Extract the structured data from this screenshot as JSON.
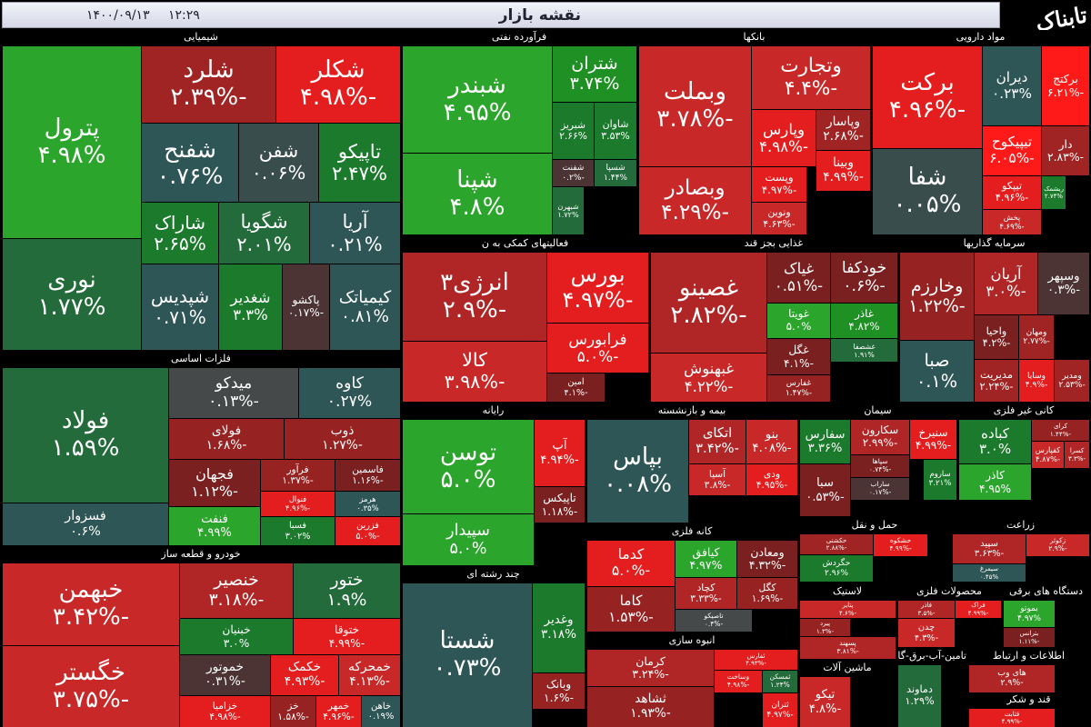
{
  "header": {
    "title": "نقشه بازار",
    "time": "۱۲:۲۹",
    "date": "۱۴۰۰/۰۹/۱۳",
    "logo": "تابناک"
  },
  "sectors": [
    {
      "title": "شیمیایی",
      "tiles": [
        {
          "name": "پترول",
          "change": "۴.۹۸%",
          "color": "#2ca52c"
        },
        {
          "name": "نوری",
          "change": "۱.۷۷%",
          "color": "#236b3a"
        },
        {
          "name": "شلرد",
          "change": "-۲.۳۹%",
          "color": "#a02424"
        },
        {
          "name": "شکلر",
          "change": "-۴.۹۸%",
          "color": "#e41e1e"
        },
        {
          "name": "شفنح",
          "change": "۰.۷۶%",
          "color": "#2f5656"
        },
        {
          "name": "شفن",
          "change": "۰.۰۶%",
          "color": "#3a4d4d"
        },
        {
          "name": "تاپیکو",
          "change": "۲.۴۷%",
          "color": "#1c7a2c"
        },
        {
          "name": "شاراک",
          "change": "۲.۶۵%",
          "color": "#1c7a2c"
        },
        {
          "name": "شگویا",
          "change": "۲.۰۱%",
          "color": "#236b3a"
        },
        {
          "name": "آریا",
          "change": "۰.۲۱%",
          "color": "#2f5656"
        },
        {
          "name": "شپدیس",
          "change": "۰.۷۱%",
          "color": "#2f5656"
        },
        {
          "name": "شغدیر",
          "change": "۳.۳%",
          "color": "#1c7a2c"
        },
        {
          "name": "پاکشو",
          "change": "-۰.۱۷%",
          "color": "#4c3434"
        },
        {
          "name": "کیمیاتک",
          "change": "۰.۸۱%",
          "color": "#2f5656"
        }
      ]
    },
    {
      "title": "فلزات اساسی",
      "tiles": [
        {
          "name": "فولاد",
          "change": "۱.۵۹%",
          "color": "#236b3a"
        },
        {
          "name": "فسزوار",
          "change": "۰.۶%",
          "color": "#2f5656"
        },
        {
          "name": "میدکو",
          "change": "-۰.۱۳%",
          "color": "#45494a"
        },
        {
          "name": "کاوه",
          "change": "۰.۲۷%",
          "color": "#2f5656"
        },
        {
          "name": "فولای",
          "change": "-۱.۶۸%",
          "color": "#962222"
        },
        {
          "name": "ذوب",
          "change": "-۱.۲۷%",
          "color": "#962222"
        },
        {
          "name": "فجهان",
          "change": "-۱.۱۲%",
          "color": "#7a2020"
        },
        {
          "name": "فرآور",
          "change": "-۱.۳۷%",
          "color": "#962222"
        },
        {
          "name": "فاسمین",
          "change": "-۱.۱۶%",
          "color": "#7a2020"
        },
        {
          "name": "فنوال",
          "change": "-۴.۹۶%",
          "color": "#e41e1e"
        },
        {
          "name": "هرمز",
          "change": "۰.۳۵%",
          "color": "#2f5656"
        },
        {
          "name": "فنفت",
          "change": "۴.۹۹%",
          "color": "#2ca52c"
        },
        {
          "name": "فسبا",
          "change": "۳.۰۲%",
          "color": "#1c7a2c"
        },
        {
          "name": "فزرین",
          "change": "-۵.۰%",
          "color": "#e41e1e"
        }
      ]
    },
    {
      "title": "خودرو و قطعه ساز",
      "tiles": [
        {
          "name": "خبهمن",
          "change": "-۳.۴۲%",
          "color": "#c92828"
        },
        {
          "name": "خگستر",
          "change": "-۳.۷۵%",
          "color": "#c92828"
        },
        {
          "name": "خنصیر",
          "change": "-۳.۱۸%",
          "color": "#b02626"
        },
        {
          "name": "ختور",
          "change": "۱.۹%",
          "color": "#236b3a"
        },
        {
          "name": "خبنیان",
          "change": "۳.۰%",
          "color": "#1c7a2c"
        },
        {
          "name": "ختوقا",
          "change": "-۴.۹۹%",
          "color": "#e41e1e"
        },
        {
          "name": "خموتور",
          "change": "-۰.۳۱%",
          "color": "#4c3434"
        },
        {
          "name": "خکمک",
          "change": "-۴.۹۳%",
          "color": "#e41e1e"
        },
        {
          "name": "خمحرکه",
          "change": "-۴.۱۳%",
          "color": "#c92828"
        },
        {
          "name": "خزامیا",
          "change": "-۴.۹۸%",
          "color": "#e41e1e"
        },
        {
          "name": "خز",
          "change": "-۱.۵۸%",
          "color": "#962222"
        },
        {
          "name": "خمهر",
          "change": "-۴.۹۶%",
          "color": "#e41e1e"
        },
        {
          "name": "خاهن",
          "change": "۰.۱۹%",
          "color": "#2f5656"
        }
      ]
    },
    {
      "title": "فرآورده نفتی",
      "tiles": [
        {
          "name": "شبندر",
          "change": "۴.۹۵%",
          "color": "#2ca52c"
        },
        {
          "name": "شپنا",
          "change": "۴.۸%",
          "color": "#2ca52c"
        },
        {
          "name": "شتران",
          "change": "۳.۷۴%",
          "color": "#1f9024"
        },
        {
          "name": "شبریز",
          "change": "۲.۶۶%",
          "color": "#1c7a2c"
        },
        {
          "name": "شاوان",
          "change": "۳.۵۳%",
          "color": "#1c7a2c"
        },
        {
          "name": "شفنت",
          "change": "-۰.۲%",
          "color": "#4c3434"
        },
        {
          "name": "شسپا",
          "change": "۱.۴۴%",
          "color": "#236b3a"
        },
        {
          "name": "شبهرن",
          "change": "۱.۷۲%",
          "color": "#236b3a"
        }
      ]
    },
    {
      "title": "بانکها",
      "tiles": [
        {
          "name": "وبملت",
          "change": "-۳.۷۸%",
          "color": "#c92828"
        },
        {
          "name": "وبصادر",
          "change": "-۴.۲۹%",
          "color": "#c92828"
        },
        {
          "name": "وتجارت",
          "change": "-۴.۴%",
          "color": "#c92828"
        },
        {
          "name": "وپارس",
          "change": "-۴.۹۸%",
          "color": "#e41e1e"
        },
        {
          "name": "وپاسار",
          "change": "-۲.۶۸%",
          "color": "#a02424"
        },
        {
          "name": "وبینا",
          "change": "-۴.۹۹%",
          "color": "#e41e1e"
        },
        {
          "name": "وپست",
          "change": "-۴.۹۷%",
          "color": "#e41e1e"
        },
        {
          "name": "ونوین",
          "change": "-۴.۶۳%",
          "color": "#c92828"
        }
      ]
    },
    {
      "title": "مواد دارویی",
      "tiles": [
        {
          "name": "برکت",
          "change": "-۴.۹۶%",
          "color": "#e41e1e"
        },
        {
          "name": "شفا",
          "change": "۰.۰۵%",
          "color": "#3a4d4d"
        },
        {
          "name": "دیران",
          "change": "۰.۲۳%",
          "color": "#2f5656"
        },
        {
          "name": "برکتج",
          "change": "-۶.۲۱%",
          "color": "#ff1a1a"
        },
        {
          "name": "تیپیکوح",
          "change": "-۶.۰۵%",
          "color": "#ff1a1a"
        },
        {
          "name": "دار",
          "change": "-۲.۸۳%",
          "color": "#a02424"
        },
        {
          "name": "تیپکو",
          "change": "-۴.۹۶%",
          "color": "#e41e1e"
        },
        {
          "name": "پخش",
          "change": "-۴.۶۹%",
          "color": "#c92828"
        },
        {
          "name": "ریشمک",
          "change": "۲.۷۴%",
          "color": "#1c7a2c"
        }
      ]
    },
    {
      "title": "فعالیتهای کمکی به ن",
      "tiles": [
        {
          "name": "انرژی۳",
          "change": "-۲.۹%",
          "color": "#b02626"
        },
        {
          "name": "کالا",
          "change": "-۳.۹۸%",
          "color": "#c92828"
        },
        {
          "name": "بورس",
          "change": "-۴.۹۷%",
          "color": "#e41e1e"
        },
        {
          "name": "فرابورس",
          "change": "-۵.۰%",
          "color": "#e41e1e"
        },
        {
          "name": "امین",
          "change": "-۴.۱%",
          "color": "#7a2020"
        }
      ]
    },
    {
      "title": "غذایی بجز قند",
      "tiles": [
        {
          "name": "غصینو",
          "change": "-۲.۸۲%",
          "color": "#b02626"
        },
        {
          "name": "غبهنوش",
          "change": "-۴.۲۲%",
          "color": "#c92828"
        },
        {
          "name": "غیاک",
          "change": "-۰.۵۱%",
          "color": "#7a2020"
        },
        {
          "name": "خودکفا",
          "change": "-۰.۶%",
          "color": "#7a2020"
        },
        {
          "name": "غویتا",
          "change": "۵.۰%",
          "color": "#2ca52c"
        },
        {
          "name": "غاذر",
          "change": "۴.۸۲%",
          "color": "#1f9024"
        },
        {
          "name": "غگل",
          "change": "-۴.۱%",
          "color": "#7a2020"
        },
        {
          "name": "غشصفا",
          "change": "۱.۹۱%",
          "color": "#236b3a"
        },
        {
          "name": "غفارس",
          "change": "-۱.۴۷%",
          "color": "#962222"
        }
      ]
    },
    {
      "title": "سرمایه گذاریها",
      "tiles": [
        {
          "name": "وخارزم",
          "change": "-۱.۲۲%",
          "color": "#962222"
        },
        {
          "name": "صبا",
          "change": "۰.۱%",
          "color": "#2f5656"
        },
        {
          "name": "آریان",
          "change": "-۳.۰%",
          "color": "#b02626"
        },
        {
          "name": "وسپهر",
          "change": "-۰.۳%",
          "color": "#4c3434"
        },
        {
          "name": "واحیا",
          "change": "-۴.۲%",
          "color": "#7a2020"
        },
        {
          "name": "ومهان",
          "change": "-۲.۷۷%",
          "color": "#a02424"
        },
        {
          "name": "مدیریت",
          "change": "-۲.۲۴%",
          "color": "#a02424"
        },
        {
          "name": "وسایا",
          "change": "-۴.۹%",
          "color": "#e41e1e"
        },
        {
          "name": "ومدیر",
          "change": "-۲.۵۳%",
          "color": "#a02424"
        }
      ]
    },
    {
      "title": "رایانه",
      "tiles": [
        {
          "name": "توسن",
          "change": "۵.۰%",
          "color": "#2ca52c"
        },
        {
          "name": "سپیدار",
          "change": "۵.۰%",
          "color": "#2ca52c"
        },
        {
          "name": "آپ",
          "change": "-۴.۹۴%",
          "color": "#e41e1e"
        },
        {
          "name": "تاپیکس",
          "change": "-۱.۱۸%",
          "color": "#7a2020"
        }
      ]
    },
    {
      "title": "بیمه و بازنشسته",
      "tiles": [
        {
          "name": "بپاس",
          "change": "۰.۰۸%",
          "color": "#2f5656"
        },
        {
          "name": "اتکای",
          "change": "-۳.۴۲%",
          "color": "#b02626"
        },
        {
          "name": "بنو",
          "change": "-۴.۰۸%",
          "color": "#c92828"
        },
        {
          "name": "آسیا",
          "change": "-۳.۸%",
          "color": "#c92828"
        },
        {
          "name": "ودی",
          "change": "-۴.۹۵%",
          "color": "#e41e1e"
        }
      ]
    },
    {
      "title": "کانه فلزی",
      "tiles": [
        {
          "name": "کدما",
          "change": "-۵.۰%",
          "color": "#e41e1e"
        },
        {
          "name": "کاما",
          "change": "-۱.۵۳%",
          "color": "#962222"
        },
        {
          "name": "کیافق",
          "change": "۴.۹۷%",
          "color": "#2ca52c"
        },
        {
          "name": "ومعادن",
          "change": "-۴.۳۲%",
          "color": "#7a2020"
        },
        {
          "name": "کچاد",
          "change": "-۳.۳۳%",
          "color": "#b02626"
        },
        {
          "name": "کگل",
          "change": "-۱.۶۹%",
          "color": "#962222"
        },
        {
          "name": "تاصیکو",
          "change": "-۰.۴%",
          "color": "#45494a"
        }
      ]
    },
    {
      "title": "چند رشته ای",
      "tiles": [
        {
          "name": "شستا",
          "change": "۰.۷۳%",
          "color": "#2f5656"
        },
        {
          "name": "وغدیر",
          "change": "۳.۱۸%",
          "color": "#1c7a2c"
        },
        {
          "name": "وبانک",
          "change": "-۱.۶%",
          "color": "#962222"
        }
      ]
    },
    {
      "title": "انبوه سازی",
      "tiles": [
        {
          "name": "کرمان",
          "change": "-۳.۲۴%",
          "color": "#b02626"
        },
        {
          "name": "ثشاهد",
          "change": "-۱.۹۳%",
          "color": "#962222"
        },
        {
          "name": "ثفارس",
          "change": "-۴.۹۳%",
          "color": "#e41e1e"
        },
        {
          "name": "وساخت",
          "change": "-۴.۹۸%",
          "color": "#e41e1e"
        },
        {
          "name": "ثمسکن",
          "change": "۱.۲۴%",
          "color": "#236b3a"
        },
        {
          "name": "ثتران",
          "change": "-۴.۹۷%",
          "color": "#e41e1e"
        }
      ]
    },
    {
      "title": "سیمان",
      "tiles": [
        {
          "name": "سفارس",
          "change": "۳.۳۶%",
          "color": "#1c7a2c"
        },
        {
          "name": "سکارون",
          "change": "-۲.۹۹%",
          "color": "#b02626"
        },
        {
          "name": "سنیرخ",
          "change": "-۴.۹۹%",
          "color": "#e41e1e"
        },
        {
          "name": "سبا",
          "change": "-۰.۵۳%",
          "color": "#7a2020"
        },
        {
          "name": "سپاها",
          "change": "-۰.۷۴%",
          "color": "#7a2020"
        },
        {
          "name": "ساراب",
          "change": "-۰.۱۷%",
          "color": "#4c3434"
        },
        {
          "name": "ساروم",
          "change": "۳.۲۱%",
          "color": "#1c7a2c"
        }
      ]
    },
    {
      "title": "کانی غیر فلزی",
      "tiles": [
        {
          "name": "کباده",
          "change": "۳.۰%",
          "color": "#1c7a2c"
        },
        {
          "name": "کاذر",
          "change": "۴.۹۵%",
          "color": "#2ca52c"
        },
        {
          "name": "کرای",
          "change": "-۱.۴۴%",
          "color": "#962222"
        },
        {
          "name": "کفپارس",
          "change": "-۴.۸۷%",
          "color": "#c92828"
        },
        {
          "name": "کسرا",
          "change": "-۳.۳%",
          "color": "#b02626"
        }
      ]
    },
    {
      "title": "حمل و نقل",
      "tiles": [
        {
          "name": "حکشتی",
          "change": "-۲.۸۸%",
          "color": "#a02424"
        },
        {
          "name": "حگردش",
          "change": "۲.۹۶%",
          "color": "#1c7a2c"
        },
        {
          "name": "حشکوه",
          "change": "-۴.۹۹%",
          "color": "#e41e1e"
        }
      ]
    },
    {
      "title": "زراعت",
      "tiles": [
        {
          "name": "سپید",
          "change": "-۳.۶۳%",
          "color": "#b02626"
        },
        {
          "name": "سیمرغ",
          "change": "۰.۴۵%",
          "color": "#2f5656"
        },
        {
          "name": "زکوثر",
          "change": "-۲.۹%",
          "color": "#c92828"
        }
      ]
    },
    {
      "title": "لاستیک",
      "tiles": [
        {
          "name": "پتایر",
          "change": "-۴.۶%",
          "color": "#c92828"
        },
        {
          "name": "پیرد",
          "change": "-۱.۳%",
          "color": "#962222"
        },
        {
          "name": "پسهند",
          "change": "-۳.۸۱%",
          "color": "#b02626"
        }
      ]
    },
    {
      "title": "محصولات فلزی",
      "tiles": [
        {
          "name": "فاذر",
          "change": "-۳.۵%",
          "color": "#b02626"
        },
        {
          "name": "فراک",
          "change": "-۴.۹۹%",
          "color": "#e41e1e"
        },
        {
          "name": "چدن",
          "change": "-۴.۳%",
          "color": "#c92828"
        }
      ]
    },
    {
      "title": "دستگاه های برقی",
      "tiles": [
        {
          "name": "بموتو",
          "change": "۴.۹۷%",
          "color": "#2ca52c"
        },
        {
          "name": "بترانس",
          "change": "-۱.۱۱%",
          "color": "#7a2020"
        }
      ]
    },
    {
      "title": "ماشین آلات",
      "tiles": [
        {
          "name": "تیکو",
          "change": "-۴.۸%",
          "color": "#c92828"
        }
      ]
    },
    {
      "title": "تامین-آب-برق-گاز",
      "tiles": [
        {
          "name": "دماوند",
          "change": "۱.۲۹%",
          "color": "#236b3a"
        }
      ]
    },
    {
      "title": "اطلاعات و ارتباط",
      "tiles": [
        {
          "name": "های وب",
          "change": "-۲.۹%",
          "color": "#b02626"
        }
      ]
    },
    {
      "title": "قند و شکر",
      "tiles": [
        {
          "name": "قثابت",
          "change": "-۴.۹۹%",
          "color": "#e41e1e"
        }
      ]
    }
  ]
}
